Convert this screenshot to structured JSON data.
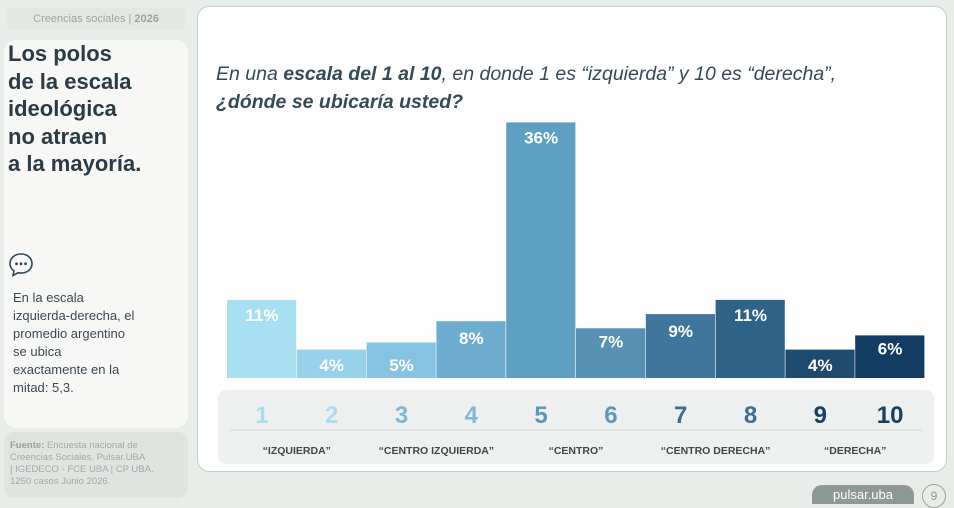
{
  "header": {
    "section": "Creencias sociales |",
    "year": "2026"
  },
  "left": {
    "headline": [
      "Los polos",
      "de la escala",
      "ideológica",
      "no atraen",
      "a la mayoría."
    ],
    "icon": "speech-bubble-icon",
    "summary": [
      "En la escala",
      "izquierda-derecha, el",
      "promedio argentino",
      "se ubica",
      "exactamente en la",
      "mitad: 5,3."
    ],
    "source_label": "Fuente:",
    "source_lines": [
      " Encuesta nacional de",
      "Creencias Sociales. Pulsar.UBA",
      "| IGEDECO - FCE UBA | CP UBA.",
      "1250 casos Junio 2026."
    ]
  },
  "question": {
    "l1_a": "En una ",
    "l1_b": "escala del 1 al 10",
    "l1_c": ", en donde 1 es “izquierda” y 10 es “derecha”,",
    "l2": "¿dónde se ubicaría usted?"
  },
  "chart_data": {
    "type": "bar",
    "title": "En una escala del 1 al 10, en donde 1 es “izquierda” y 10 es “derecha”, ¿dónde se ubicaría usted?",
    "categories": [
      "1",
      "2",
      "3",
      "4",
      "5",
      "6",
      "7",
      "8",
      "9",
      "10"
    ],
    "values": [
      11,
      4,
      5,
      8,
      36,
      7,
      9,
      11,
      4,
      6
    ],
    "value_labels": [
      "11%",
      "4%",
      "5%",
      "8%",
      "36%",
      "7%",
      "9%",
      "11%",
      "4%",
      "6%"
    ],
    "colors": [
      "#a8dff3",
      "#97d1ea",
      "#86c3e2",
      "#6eadd0",
      "#5f9fc2",
      "#5792b5",
      "#40769b",
      "#2f6388",
      "#1f4b6f",
      "#123c61"
    ],
    "groups": [
      {
        "label": "“IZQUIERDA”",
        "categories": [
          "1",
          "2"
        ]
      },
      {
        "label": "“CENTRO IZQUIERDA”",
        "categories": [
          "3",
          "4"
        ]
      },
      {
        "label": "“CENTRO”",
        "categories": [
          "5",
          "6"
        ]
      },
      {
        "label": "“CENTRO DERECHA”",
        "categories": [
          "7",
          "8"
        ]
      },
      {
        "label": "“DERECHA”",
        "categories": [
          "9",
          "10"
        ]
      }
    ]
  },
  "footer": {
    "brand": "pulsar.uba",
    "page": "9"
  }
}
